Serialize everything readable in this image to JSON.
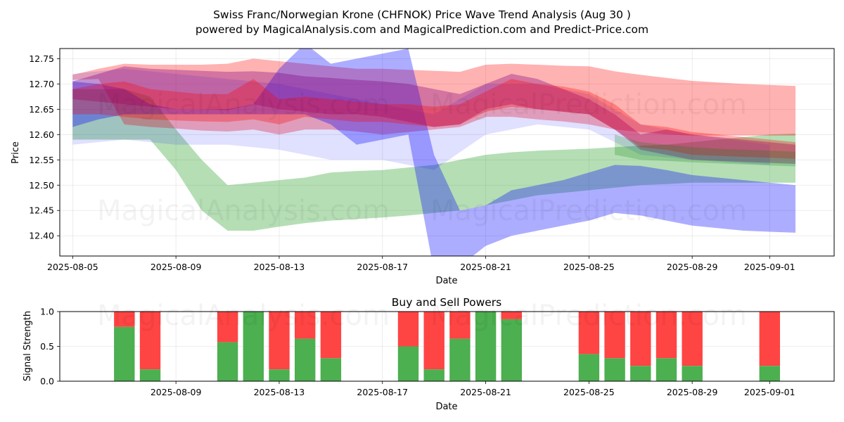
{
  "figure": {
    "title_line1": "Swiss Franc/Norwegian Krone (CHFNOK) Price Wave Trend Analysis (Aug 30 )",
    "title_line2": "powered by MagicalAnalysis.com and MagicalPrediction.com and Predict-Price.com",
    "watermarks": [
      "MagicalAnalysis.com",
      "MagicalPrediction.com"
    ]
  },
  "chart_data": [
    {
      "type": "area",
      "title": "",
      "xlabel": "Date",
      "ylabel": "Price",
      "xlim": [
        "2025-08-04T12:00",
        "2025-09-03T12:00"
      ],
      "ylim": [
        12.36,
        12.77
      ],
      "x_ticks": [
        "2025-08-05",
        "2025-08-09",
        "2025-08-13",
        "2025-08-17",
        "2025-08-21",
        "2025-08-25",
        "2025-08-29",
        "2025-09-01"
      ],
      "y_ticks": [
        12.4,
        12.45,
        12.5,
        12.55,
        12.6,
        12.65,
        12.7,
        12.75
      ],
      "grid": true,
      "bands": [
        {
          "color": "#2ca02c",
          "opacity": 0.35,
          "x": [
            "2025-08-05",
            "2025-08-07",
            "2025-08-08",
            "2025-08-09",
            "2025-08-10",
            "2025-08-11",
            "2025-08-12",
            "2025-08-13",
            "2025-08-14",
            "2025-08-15",
            "2025-08-16",
            "2025-08-17",
            "2025-08-18",
            "2025-08-19",
            "2025-08-20",
            "2025-08-21",
            "2025-08-22",
            "2025-08-23",
            "2025-08-24",
            "2025-08-25",
            "2025-08-26",
            "2025-08-27",
            "2025-08-28",
            "2025-08-29",
            "2025-08-30",
            "2025-08-31",
            "2025-09-01",
            "2025-09-02"
          ],
          "upper": [
            12.69,
            12.69,
            12.675,
            12.61,
            12.55,
            12.5,
            12.505,
            12.51,
            12.515,
            12.525,
            12.528,
            12.53,
            12.535,
            12.54,
            12.55,
            12.56,
            12.565,
            12.568,
            12.57,
            12.572,
            12.575,
            12.578,
            12.58,
            12.585,
            12.59,
            12.595,
            12.6,
            12.602
          ],
          "lower": [
            12.59,
            12.59,
            12.59,
            12.53,
            12.45,
            12.41,
            12.41,
            12.418,
            12.425,
            12.43,
            12.433,
            12.436,
            12.44,
            12.445,
            12.45,
            12.46,
            12.47,
            12.48,
            12.485,
            12.49,
            12.495,
            12.5,
            12.502,
            12.505,
            12.505,
            12.505,
            12.505,
            12.505
          ]
        },
        {
          "color": "#ff0000",
          "opacity": 0.3,
          "x": [
            "2025-08-05",
            "2025-08-06",
            "2025-08-07",
            "2025-08-08",
            "2025-08-09",
            "2025-08-10",
            "2025-08-11",
            "2025-08-12",
            "2025-08-13",
            "2025-08-14",
            "2025-08-15",
            "2025-08-16",
            "2025-08-17",
            "2025-08-18",
            "2025-08-19",
            "2025-08-20",
            "2025-08-21",
            "2025-08-22",
            "2025-08-23",
            "2025-08-24",
            "2025-08-25",
            "2025-08-26",
            "2025-08-27",
            "2025-08-28",
            "2025-08-29",
            "2025-08-30",
            "2025-08-31",
            "2025-09-01",
            "2025-09-02"
          ],
          "upper": [
            12.718,
            12.73,
            12.74,
            12.738,
            12.738,
            12.738,
            12.74,
            12.75,
            12.745,
            12.74,
            12.735,
            12.73,
            12.73,
            12.728,
            12.726,
            12.724,
            12.738,
            12.74,
            12.738,
            12.736,
            12.735,
            12.725,
            12.718,
            12.712,
            12.706,
            12.703,
            12.7,
            12.698,
            12.696
          ],
          "lower": [
            12.708,
            12.71,
            12.62,
            12.615,
            12.612,
            12.608,
            12.606,
            12.61,
            12.6,
            12.61,
            12.61,
            12.606,
            12.6,
            12.605,
            12.61,
            12.615,
            12.635,
            12.635,
            12.63,
            12.626,
            12.62,
            12.61,
            12.605,
            12.6,
            12.598,
            12.598,
            12.598,
            12.598,
            12.598
          ]
        },
        {
          "color": "#0000ff",
          "opacity": 0.32,
          "x": [
            "2025-08-05",
            "2025-08-06",
            "2025-08-07",
            "2025-08-08",
            "2025-08-09",
            "2025-08-10",
            "2025-08-11",
            "2025-08-12",
            "2025-08-13",
            "2025-08-14",
            "2025-08-15",
            "2025-08-16",
            "2025-08-17",
            "2025-08-18",
            "2025-08-19",
            "2025-08-20",
            "2025-08-21",
            "2025-08-22",
            "2025-08-23",
            "2025-08-24",
            "2025-08-25",
            "2025-08-26",
            "2025-08-27",
            "2025-08-28",
            "2025-08-29",
            "2025-08-30",
            "2025-08-31",
            "2025-09-01",
            "2025-09-02"
          ],
          "upper": [
            12.705,
            12.7,
            12.69,
            12.66,
            12.65,
            12.65,
            12.65,
            12.66,
            12.73,
            12.78,
            12.74,
            12.75,
            12.76,
            12.77,
            12.56,
            12.45,
            12.46,
            12.49,
            12.5,
            12.51,
            12.525,
            12.54,
            12.538,
            12.53,
            12.52,
            12.515,
            12.51,
            12.505,
            12.5
          ],
          "lower": [
            12.615,
            12.63,
            12.64,
            12.64,
            12.64,
            12.64,
            12.64,
            12.64,
            12.64,
            12.64,
            12.62,
            12.58,
            12.59,
            12.6,
            12.33,
            12.34,
            12.38,
            12.4,
            12.41,
            12.42,
            12.43,
            12.445,
            12.44,
            12.43,
            12.42,
            12.415,
            12.41,
            12.408,
            12.406
          ]
        },
        {
          "color": "#0000ff",
          "opacity": 0.12,
          "x": [
            "2025-08-05",
            "2025-08-07",
            "2025-08-09",
            "2025-08-11",
            "2025-08-13",
            "2025-08-15",
            "2025-08-17",
            "2025-08-19",
            "2025-08-21",
            "2025-08-23",
            "2025-08-25",
            "2025-08-27",
            "2025-08-29",
            "2025-09-01"
          ],
          "upper": [
            12.72,
            12.73,
            12.72,
            12.71,
            12.7,
            12.68,
            12.66,
            12.64,
            12.7,
            12.7,
            12.68,
            12.62,
            12.6,
            12.58
          ],
          "lower": [
            12.58,
            12.59,
            12.58,
            12.58,
            12.57,
            12.55,
            12.55,
            12.53,
            12.6,
            12.62,
            12.61,
            12.56,
            12.55,
            12.54
          ]
        },
        {
          "color": "#800080",
          "opacity": 0.35,
          "x": [
            "2025-08-05",
            "2025-08-06",
            "2025-08-07",
            "2025-08-08",
            "2025-08-09",
            "2025-08-10",
            "2025-08-11",
            "2025-08-12",
            "2025-08-13",
            "2025-08-14",
            "2025-08-15",
            "2025-08-16",
            "2025-08-17",
            "2025-08-18",
            "2025-08-19",
            "2025-08-20",
            "2025-08-21",
            "2025-08-22",
            "2025-08-23",
            "2025-08-24",
            "2025-08-25",
            "2025-08-26",
            "2025-08-27",
            "2025-08-28",
            "2025-08-29",
            "2025-08-30",
            "2025-08-31",
            "2025-09-01",
            "2025-09-02"
          ],
          "upper": [
            12.705,
            12.72,
            12.735,
            12.73,
            12.728,
            12.726,
            12.724,
            12.725,
            12.722,
            12.715,
            12.712,
            12.708,
            12.705,
            12.7,
            12.69,
            12.68,
            12.7,
            12.72,
            12.71,
            12.69,
            12.67,
            12.64,
            12.6,
            12.61,
            12.6,
            12.595,
            12.59,
            12.585,
            12.58
          ],
          "lower": [
            12.67,
            12.665,
            12.66,
            12.655,
            12.65,
            12.65,
            12.648,
            12.66,
            12.65,
            12.645,
            12.64,
            12.64,
            12.635,
            12.625,
            12.615,
            12.62,
            12.65,
            12.66,
            12.65,
            12.645,
            12.64,
            12.61,
            12.57,
            12.56,
            12.55,
            12.548,
            12.546,
            12.544,
            12.542
          ]
        },
        {
          "color": "#ff0000",
          "opacity": 0.3,
          "x": [
            "2025-08-05",
            "2025-08-06",
            "2025-08-07",
            "2025-08-08",
            "2025-08-09",
            "2025-08-10",
            "2025-08-11",
            "2025-08-12",
            "2025-08-13",
            "2025-08-14",
            "2025-08-15",
            "2025-08-16",
            "2025-08-17",
            "2025-08-18",
            "2025-08-19",
            "2025-08-20",
            "2025-08-21",
            "2025-08-22",
            "2025-08-23",
            "2025-08-24",
            "2025-08-25",
            "2025-08-26",
            "2025-08-27",
            "2025-08-28",
            "2025-08-29",
            "2025-08-30",
            "2025-08-31",
            "2025-09-01",
            "2025-09-02"
          ],
          "upper": [
            12.69,
            12.7,
            12.705,
            12.69,
            12.685,
            12.68,
            12.68,
            12.71,
            12.67,
            12.675,
            12.67,
            12.665,
            12.66,
            12.66,
            12.655,
            12.66,
            12.685,
            12.71,
            12.7,
            12.695,
            12.685,
            12.66,
            12.62,
            12.615,
            12.605,
            12.6,
            12.595,
            12.59,
            12.585
          ],
          "lower": [
            12.64,
            12.64,
            12.635,
            12.63,
            12.628,
            12.626,
            12.625,
            12.63,
            12.62,
            12.635,
            12.63,
            12.625,
            12.625,
            12.62,
            12.615,
            12.62,
            12.645,
            12.655,
            12.65,
            12.645,
            12.64,
            12.61,
            12.575,
            12.57,
            12.56,
            12.558,
            12.556,
            12.554,
            12.552
          ]
        },
        {
          "color": "#008000",
          "opacity": 0.22,
          "x": [
            "2025-08-26",
            "2025-08-27",
            "2025-08-28",
            "2025-08-29",
            "2025-08-30",
            "2025-08-31",
            "2025-09-01",
            "2025-09-02"
          ],
          "upper": [
            12.6,
            12.585,
            12.58,
            12.575,
            12.572,
            12.57,
            12.568,
            12.566
          ],
          "lower": [
            12.56,
            12.55,
            12.548,
            12.545,
            12.543,
            12.541,
            12.539,
            12.537
          ]
        }
      ]
    },
    {
      "type": "bar",
      "title": "Buy and Sell Powers",
      "xlabel": "Date",
      "ylabel": "Signal Strength",
      "ylim": [
        0,
        1
      ],
      "y_ticks": [
        "0.0",
        "0.5",
        "1.0"
      ],
      "x_ticks": [
        "2025-08-09",
        "2025-08-13",
        "2025-08-17",
        "2025-08-21",
        "2025-08-25",
        "2025-08-29",
        "2025-09-01"
      ],
      "buy_color": "#4caf50",
      "sell_color": "#ff4444",
      "bars": [
        {
          "date": "2025-08-07",
          "buy": 0.78
        },
        {
          "date": "2025-08-08",
          "buy": 0.17
        },
        {
          "date": "2025-08-11",
          "buy": 0.56
        },
        {
          "date": "2025-08-12",
          "buy": 1.0
        },
        {
          "date": "2025-08-13",
          "buy": 0.17
        },
        {
          "date": "2025-08-14",
          "buy": 0.61
        },
        {
          "date": "2025-08-15",
          "buy": 0.33
        },
        {
          "date": "2025-08-18",
          "buy": 0.5
        },
        {
          "date": "2025-08-19",
          "buy": 0.17
        },
        {
          "date": "2025-08-20",
          "buy": 0.61
        },
        {
          "date": "2025-08-21",
          "buy": 1.0
        },
        {
          "date": "2025-08-22",
          "buy": 0.89
        },
        {
          "date": "2025-08-25",
          "buy": 0.39
        },
        {
          "date": "2025-08-26",
          "buy": 0.33
        },
        {
          "date": "2025-08-27",
          "buy": 0.22
        },
        {
          "date": "2025-08-28",
          "buy": 0.33
        },
        {
          "date": "2025-08-29",
          "buy": 0.22
        },
        {
          "date": "2025-09-01",
          "buy": 0.22
        }
      ]
    }
  ]
}
